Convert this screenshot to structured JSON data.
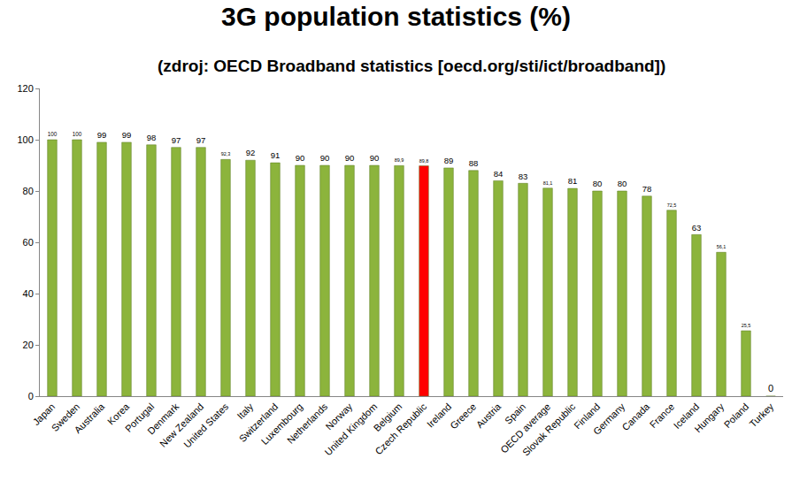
{
  "chart_data": {
    "type": "bar",
    "title": "3G population statistics (%)",
    "subtitle": "(zdroj: OECD Broadband statistics [oecd.org/sti/ict/broadband])",
    "categories": [
      "Japan",
      "Sweden",
      "Australia",
      "Korea",
      "Portugal",
      "Denmark",
      "New Zealand",
      "United States",
      "Italy",
      "Switzerland",
      "Luxembourg",
      "Netherlands",
      "Norway",
      "United Kingdom",
      "Belgium",
      "Czech Republic",
      "Ireland",
      "Greece",
      "Austria",
      "Spain",
      "OECD average",
      "Slovak Republic",
      "Finland",
      "Germany",
      "Canada",
      "France",
      "Iceland",
      "Hungary",
      "Poland",
      "Turkey"
    ],
    "values": [
      100,
      100,
      99,
      99,
      98,
      97,
      97,
      92.3,
      92,
      91,
      90,
      90,
      90,
      90,
      89.9,
      89.8,
      89,
      88,
      84,
      83,
      81.1,
      81,
      80,
      80,
      78,
      72.5,
      63,
      56.1,
      25.5,
      0
    ],
    "value_labels": [
      "100",
      "100",
      "99",
      "99",
      "98",
      "97",
      "97",
      "92,3",
      "92",
      "91",
      "90",
      "90",
      "90",
      "90",
      "89,9",
      "89,8",
      "89",
      "88",
      "84",
      "83",
      "81,1",
      "81",
      "80",
      "80",
      "78",
      "72,5",
      "63",
      "56,1",
      "25,5",
      "0"
    ],
    "colors": [
      "#8cb43c",
      "#8cb43c",
      "#8cb43c",
      "#8cb43c",
      "#8cb43c",
      "#8cb43c",
      "#8cb43c",
      "#8cb43c",
      "#8cb43c",
      "#8cb43c",
      "#8cb43c",
      "#8cb43c",
      "#8cb43c",
      "#8cb43c",
      "#8cb43c",
      "#ff0000",
      "#8cb43c",
      "#8cb43c",
      "#8cb43c",
      "#8cb43c",
      "#8cb43c",
      "#8cb43c",
      "#8cb43c",
      "#8cb43c",
      "#8cb43c",
      "#8cb43c",
      "#8cb43c",
      "#8cb43c",
      "#8cb43c",
      "#8cb43c"
    ],
    "ylim": [
      0,
      120
    ],
    "yticks": [
      0,
      20,
      40,
      60,
      80,
      100,
      120
    ],
    "grid": false,
    "data_labels": true
  }
}
